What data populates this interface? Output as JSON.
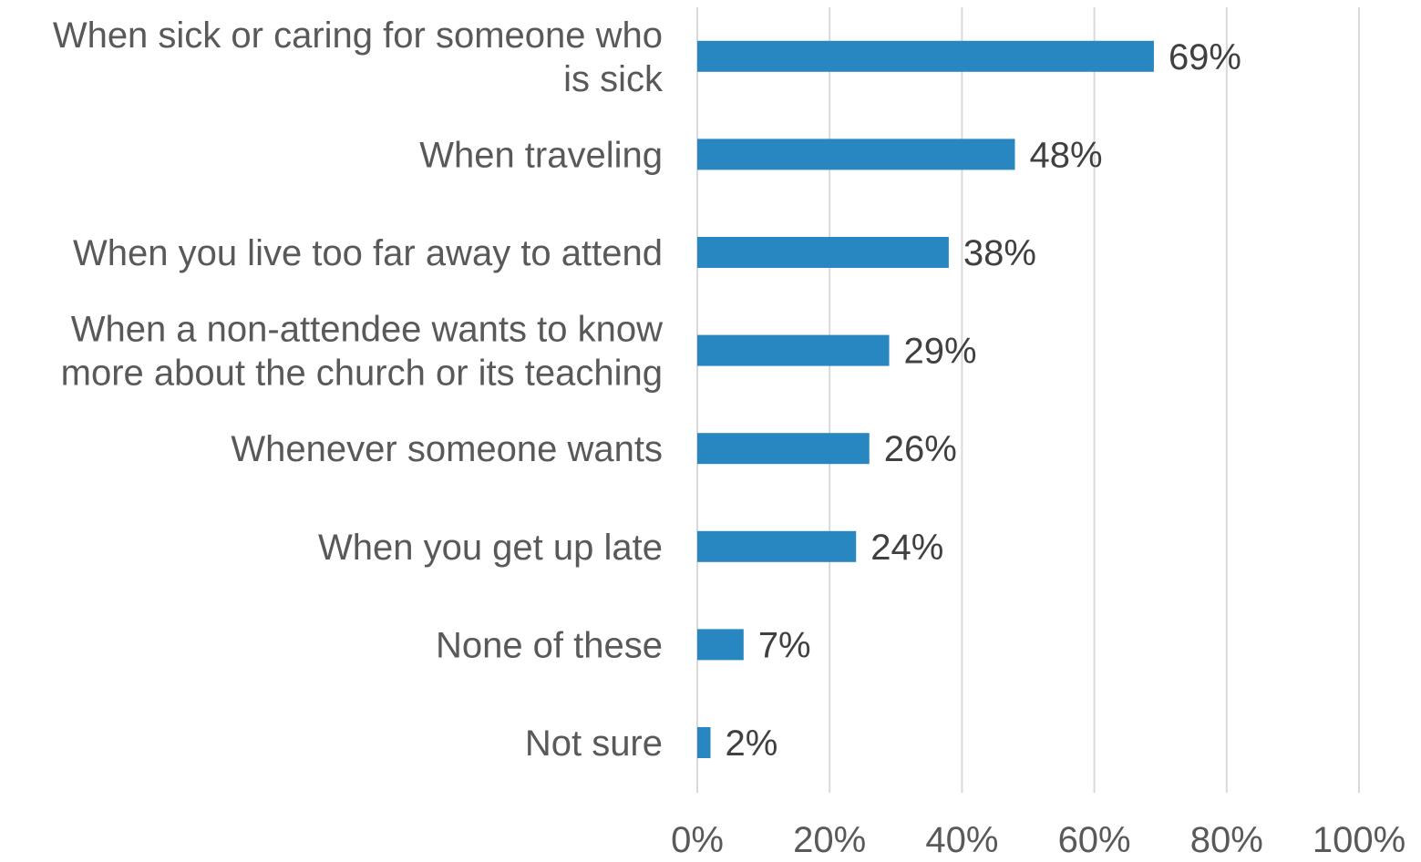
{
  "chart_data": {
    "type": "bar",
    "orientation": "horizontal",
    "title": "",
    "xlabel": "",
    "ylabel": "",
    "categories": [
      [
        "When sick or caring for someone who",
        "is sick"
      ],
      [
        "When traveling"
      ],
      [
        "When you live too far away to attend"
      ],
      [
        "When a non-attendee wants to know",
        "more about the church or its teaching"
      ],
      [
        "Whenever someone wants"
      ],
      [
        "When you get up late"
      ],
      [
        "None of these"
      ],
      [
        "Not sure"
      ]
    ],
    "values": [
      69,
      48,
      38,
      29,
      26,
      24,
      7,
      2
    ],
    "data_labels": [
      "69%",
      "48%",
      "38%",
      "29%",
      "26%",
      "24%",
      "7%",
      "2%"
    ],
    "xlim": [
      0,
      100
    ],
    "x_ticks": [
      0,
      20,
      40,
      60,
      80,
      100
    ],
    "x_tick_labels": [
      "0%",
      "20%",
      "40%",
      "60%",
      "80%",
      "100%"
    ],
    "grid": true,
    "legend": "none",
    "colors": {
      "bar": "#2887C0",
      "gridline": "#D9D9D9",
      "category_text": "#595959",
      "value_text": "#404040"
    }
  }
}
